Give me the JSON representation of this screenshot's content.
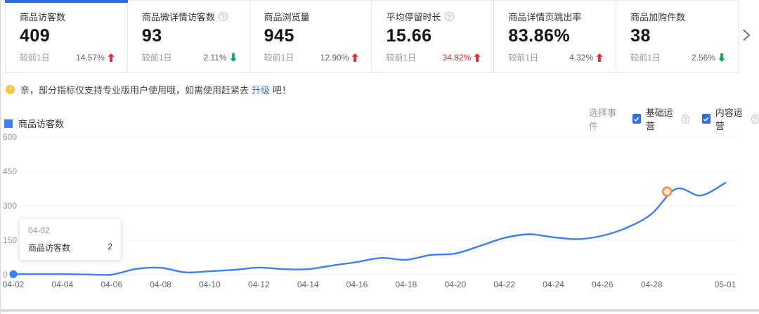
{
  "colors": {
    "accent_blue": "#2E6BE6",
    "line_blue": "#3D7EFC",
    "up_red": "#F5222D",
    "down_green": "#00B050",
    "link_blue": "#3370FF",
    "checkbox_blue": "#2E6BE6",
    "notice_yellow": "#FFC53D",
    "marker_orange": "#FA8C45",
    "marker_fill": "#FFE9D6"
  },
  "icons": {
    "info_mark": "?",
    "notice_mark": "!"
  },
  "metric_cards": [
    {
      "title": "商品访客数",
      "value": "409",
      "compare_label": "较前1日",
      "change": "14.57%",
      "direction": "up",
      "change_red": false,
      "has_info": false,
      "selected": true
    },
    {
      "title": "商品微详情访客数",
      "value": "93",
      "compare_label": "较前1日",
      "change": "2.11%",
      "direction": "down",
      "change_red": false,
      "has_info": true,
      "selected": false
    },
    {
      "title": "商品浏览量",
      "value": "945",
      "compare_label": "较前1日",
      "change": "12.90%",
      "direction": "up",
      "change_red": false,
      "has_info": false,
      "selected": false
    },
    {
      "title": "平均停留时长",
      "value": "15.66",
      "compare_label": "较前1日",
      "change": "34.82%",
      "direction": "up",
      "change_red": true,
      "has_info": true,
      "selected": false
    },
    {
      "title": "商品详情页跳出率",
      "value": "83.86%",
      "compare_label": "较前1日",
      "change": "4.32%",
      "direction": "up",
      "change_red": false,
      "has_info": false,
      "selected": false
    },
    {
      "title": "商品加购件数",
      "value": "38",
      "compare_label": "较前1日",
      "change": "2.56%",
      "direction": "down",
      "change_red": false,
      "has_info": false,
      "selected": false
    }
  ],
  "notice": {
    "text_before": "亲，部分指标仅支持专业版用户使用哦，如需使用赶紧去",
    "link_label": "升级",
    "text_after": "吧！"
  },
  "event_filter": {
    "label": "选择事件",
    "options": [
      {
        "label": "基础运营",
        "checked": true,
        "has_info": true
      },
      {
        "label": "内容运营",
        "checked": true,
        "has_info": true
      }
    ]
  },
  "legend": {
    "label": "商品访客数"
  },
  "tooltip": {
    "date": "04-02",
    "series": "商品访客数",
    "value": "2"
  },
  "chart_data": {
    "type": "line",
    "title": "",
    "series_name": "商品访客数",
    "categories": [
      "04-02",
      "04-03",
      "04-04",
      "04-05",
      "04-06",
      "04-07",
      "04-08",
      "04-09",
      "04-10",
      "04-11",
      "04-12",
      "04-13",
      "04-14",
      "04-15",
      "04-16",
      "04-17",
      "04-18",
      "04-19",
      "04-20",
      "04-21",
      "04-22",
      "04-23",
      "04-24",
      "04-25",
      "04-26",
      "04-27",
      "04-28",
      "04-29",
      "04-30",
      "05-01"
    ],
    "values": [
      2,
      2,
      2,
      1,
      0,
      25,
      30,
      10,
      15,
      21,
      31,
      24,
      24,
      40,
      55,
      73,
      65,
      86,
      92,
      125,
      160,
      176,
      163,
      155,
      170,
      205,
      265,
      374,
      345,
      400
    ],
    "ylim": [
      0,
      600
    ],
    "y_ticks": [
      0,
      150,
      300,
      450,
      600
    ],
    "x_ticks": [
      "04-02",
      "04-04",
      "04-06",
      "04-08",
      "04-10",
      "04-12",
      "04-14",
      "04-16",
      "04-18",
      "04-20",
      "04-22",
      "04-24",
      "04-26",
      "04-28",
      "05-01"
    ],
    "grid": "horizontal",
    "legend_position": "top-left",
    "active_point": {
      "category": "04-02",
      "value": 2
    },
    "event_marker": {
      "category": "04-29",
      "value": 374
    }
  }
}
